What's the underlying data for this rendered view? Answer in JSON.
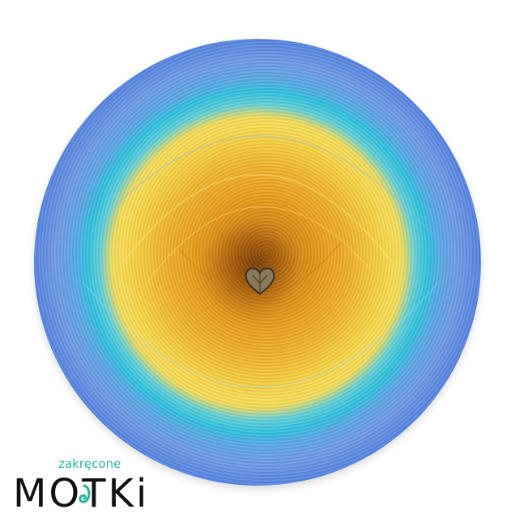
{
  "image": {
    "subject": "yarn-cake",
    "colors": {
      "center": "#b8690c",
      "yellow": "#f6cf3e",
      "cyan": "#2fc2e0",
      "light_blue": "#6f9ae6",
      "royal_blue": "#1f45c4"
    },
    "charm_icon": "heart-charm-icon"
  },
  "logo": {
    "small": "zakręcone",
    "big": "MOTKi"
  }
}
